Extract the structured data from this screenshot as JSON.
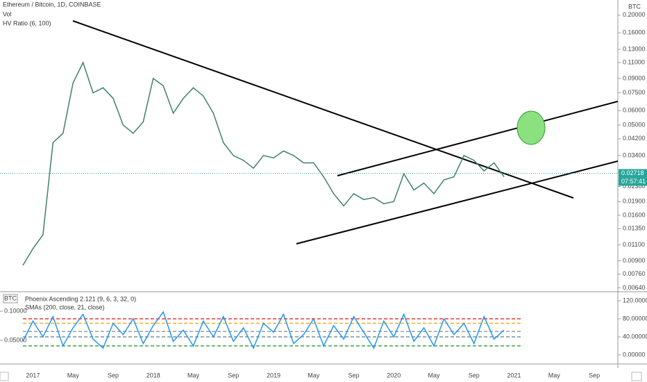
{
  "chart_data": [
    {
      "type": "line",
      "title": "Ethereum / Bitcoin, 1D, COINBASE",
      "legend_lines": [
        "Vol",
        "HV Ratio (6, 100)"
      ],
      "y_unit": "BTC",
      "log_scale": true,
      "color": "#3f7f6f",
      "categories": [
        null,
        "2017",
        null,
        null,
        null,
        "May",
        null,
        null,
        null,
        "Sep",
        null,
        null,
        null,
        "2018",
        null,
        null,
        null,
        "May",
        null,
        null,
        null,
        "Sep",
        null,
        null,
        null,
        "2019",
        null,
        null,
        null,
        "May",
        null,
        null,
        null,
        "Sep",
        null,
        null,
        null,
        "2020",
        null,
        null,
        null,
        "May",
        null,
        null,
        null,
        "Sep",
        null,
        null,
        null,
        "2021",
        null,
        null,
        null,
        "May",
        null,
        null,
        null,
        "Sep"
      ],
      "values": [
        0.0085,
        0.0105,
        0.0125,
        0.04,
        0.045,
        0.085,
        0.11,
        0.075,
        0.08,
        0.07,
        0.05,
        0.045,
        0.052,
        0.09,
        0.082,
        0.058,
        0.07,
        0.08,
        0.072,
        0.058,
        0.04,
        0.034,
        0.032,
        0.029,
        0.034,
        0.033,
        0.036,
        0.034,
        0.031,
        0.031,
        0.026,
        0.021,
        0.018,
        0.021,
        0.0195,
        0.02,
        0.0185,
        0.019,
        0.027,
        0.022,
        0.024,
        0.021,
        0.025,
        0.026,
        0.034,
        0.032,
        0.028,
        0.031,
        0.026,
        null,
        null,
        null,
        null,
        null,
        null,
        null,
        null,
        null
      ],
      "ylim": [
        0.0062,
        0.238
      ],
      "yticks": [
        {
          "value": 0.2,
          "label": "0.20000"
        },
        {
          "value": 0.16,
          "label": "0.16000"
        },
        {
          "value": 0.13,
          "label": "0.13000"
        },
        {
          "value": 0.11,
          "label": "0.11000"
        },
        {
          "value": 0.09,
          "label": "0.09000"
        },
        {
          "value": 0.075,
          "label": "0.07500"
        },
        {
          "value": 0.06,
          "label": "0.06000"
        },
        {
          "value": 0.05,
          "label": "0.05000"
        },
        {
          "value": 0.042,
          "label": "0.04200"
        },
        {
          "value": 0.034,
          "label": "0.03400"
        },
        {
          "value": 0.023,
          "label": "0.02300"
        },
        {
          "value": 0.019,
          "label": "0.01900"
        },
        {
          "value": 0.016,
          "label": "0.01600"
        },
        {
          "value": 0.0135,
          "label": "0.01350"
        },
        {
          "value": 0.011,
          "label": "0.01100"
        },
        {
          "value": 0.009,
          "label": "0.00900"
        },
        {
          "value": 0.0076,
          "label": "0.00760"
        },
        {
          "value": 0.0064,
          "label": "0.00640"
        }
      ],
      "last_price": {
        "value": 0.02718,
        "label": "0.02718"
      },
      "countdown": "07:57:41"
    },
    {
      "type": "line",
      "title": "Phoenix Ascending 2.121 (9, 6, 3, 32, 0)",
      "subtitle": "SMAs (200, close, 21, close)",
      "y2_unit": "BTC",
      "color": "#2196f3",
      "values": [
        30,
        75,
        40,
        85,
        20,
        60,
        90,
        35,
        15,
        70,
        45,
        80,
        25,
        65,
        95,
        30,
        55,
        20,
        75,
        40,
        85,
        30,
        60,
        15,
        70,
        50,
        90,
        25,
        45,
        80,
        20,
        65,
        35,
        85,
        50,
        15,
        75,
        40,
        90,
        30,
        60,
        20,
        80,
        45,
        70,
        25,
        85,
        35,
        55,
        null,
        null,
        null,
        null,
        null,
        null,
        null,
        null,
        null
      ],
      "ylim": [
        -17,
        137
      ],
      "yticks": [
        {
          "value": 120,
          "label": "120.00000"
        },
        {
          "value": 80,
          "label": "80.00000"
        },
        {
          "value": 40,
          "label": "40.00000"
        },
        {
          "value": 0,
          "label": "0.00000"
        }
      ],
      "y2lim": [
        0.0119,
        0.131
      ],
      "y2ticks": [
        {
          "value": 0.1,
          "label": "0.10000"
        },
        {
          "value": 0.05,
          "label": "0.05000"
        }
      ],
      "levels": [
        {
          "value": 80,
          "color": "#e53935"
        },
        {
          "value": 70,
          "color": "#ffa726"
        },
        {
          "value": 52,
          "color": "#9e9e9e"
        },
        {
          "value": 40,
          "color": "#78909c"
        },
        {
          "value": 20,
          "color": "#43a047"
        }
      ]
    }
  ]
}
